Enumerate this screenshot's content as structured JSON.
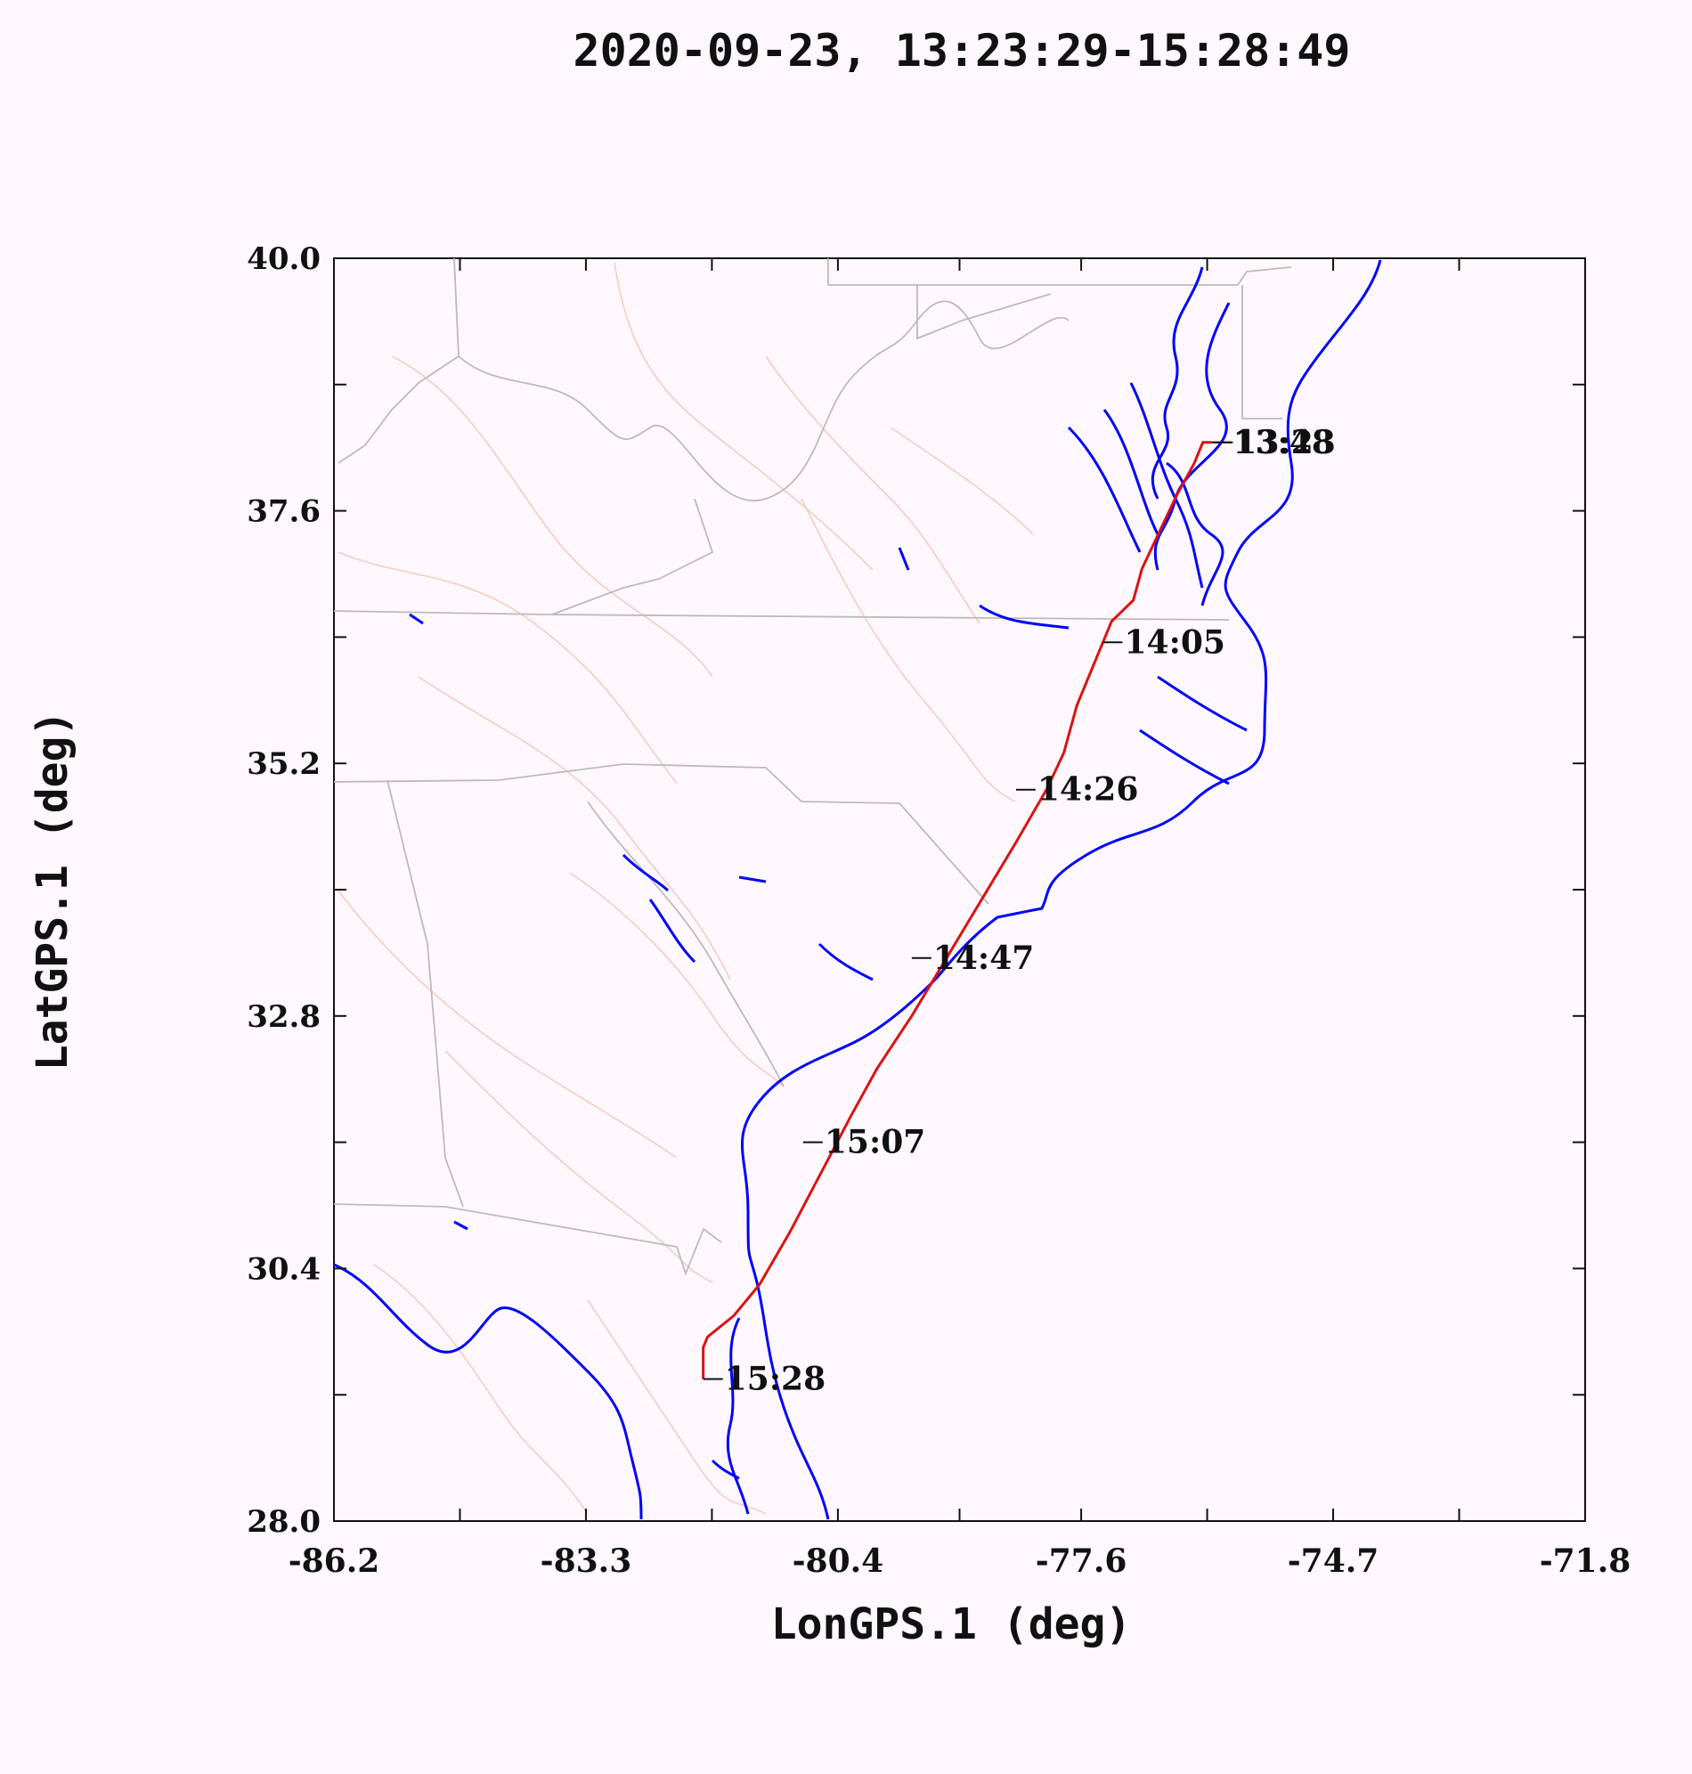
{
  "title": "2020-09-23, 13:23:29-15:28:49",
  "x_axis": {
    "label": "LonGPS.1 (deg)",
    "range": [
      -86.2,
      -71.8
    ],
    "tick_labels": [
      "-86.2",
      "-83.3",
      "-80.4",
      "-77.6",
      "-74.7",
      "-71.8"
    ],
    "tick_values": [
      -86.2,
      -83.3,
      -80.4,
      -77.6,
      -74.7,
      -71.8
    ]
  },
  "y_axis": {
    "label": "LatGPS.1 (deg)",
    "range": [
      28.0,
      40.0
    ],
    "tick_labels": [
      "28.0",
      "30.4",
      "32.8",
      "35.2",
      "37.6",
      "40.0"
    ],
    "tick_values": [
      28.0,
      30.4,
      32.8,
      35.2,
      37.6,
      40.0
    ]
  },
  "colors": {
    "background": "#fef8fe",
    "flight_track": "#dd1111",
    "coastline": "#0000ff",
    "state_borders": "#bbbbbb",
    "rivers": "#f4c4b4",
    "text": "#111111"
  },
  "chart_data": {
    "type": "line",
    "title": "2020-09-23, 13:23:29-15:28:49",
    "xlabel": "LonGPS.1 (deg)",
    "ylabel": "LatGPS.1 (deg)",
    "xlim": [
      -86.2,
      -71.8
    ],
    "ylim": [
      28.0,
      40.0
    ],
    "series": [
      {
        "x": [
          -76.1,
          -76.2,
          -76.3,
          -76.5,
          -76.7,
          -76.9,
          -77.0,
          -77.25,
          -77.35,
          -77.5,
          -77.65,
          -77.8,
          -78.0,
          -78.35,
          -78.75,
          -79.15,
          -79.55,
          -79.95,
          -80.25,
          -80.6,
          -80.95,
          -81.3,
          -81.6,
          -81.9,
          -81.95,
          -81.95
        ],
        "y": [
          38.25,
          38.25,
          38.05,
          37.75,
          37.4,
          37.05,
          36.75,
          36.55,
          36.35,
          36.05,
          35.75,
          35.3,
          34.95,
          34.45,
          33.9,
          33.35,
          32.8,
          32.3,
          31.85,
          31.3,
          30.75,
          30.25,
          29.95,
          29.75,
          29.65,
          29.35
        ]
      }
    ],
    "annotations": [
      {
        "text": "13:48",
        "lon": -76.1,
        "lat": 38.25
      },
      {
        "text": "13:23",
        "lon": -76.08,
        "lat": 38.25
      },
      {
        "text": "14:05",
        "lon": -77.35,
        "lat": 36.35
      },
      {
        "text": "14:26",
        "lon": -78.35,
        "lat": 34.95
      },
      {
        "text": "14:47",
        "lon": -79.55,
        "lat": 33.35
      },
      {
        "text": "15:07",
        "lon": -80.8,
        "lat": 31.6
      },
      {
        "text": "15:28",
        "lon": -81.95,
        "lat": 29.35
      }
    ],
    "grid": false
  }
}
